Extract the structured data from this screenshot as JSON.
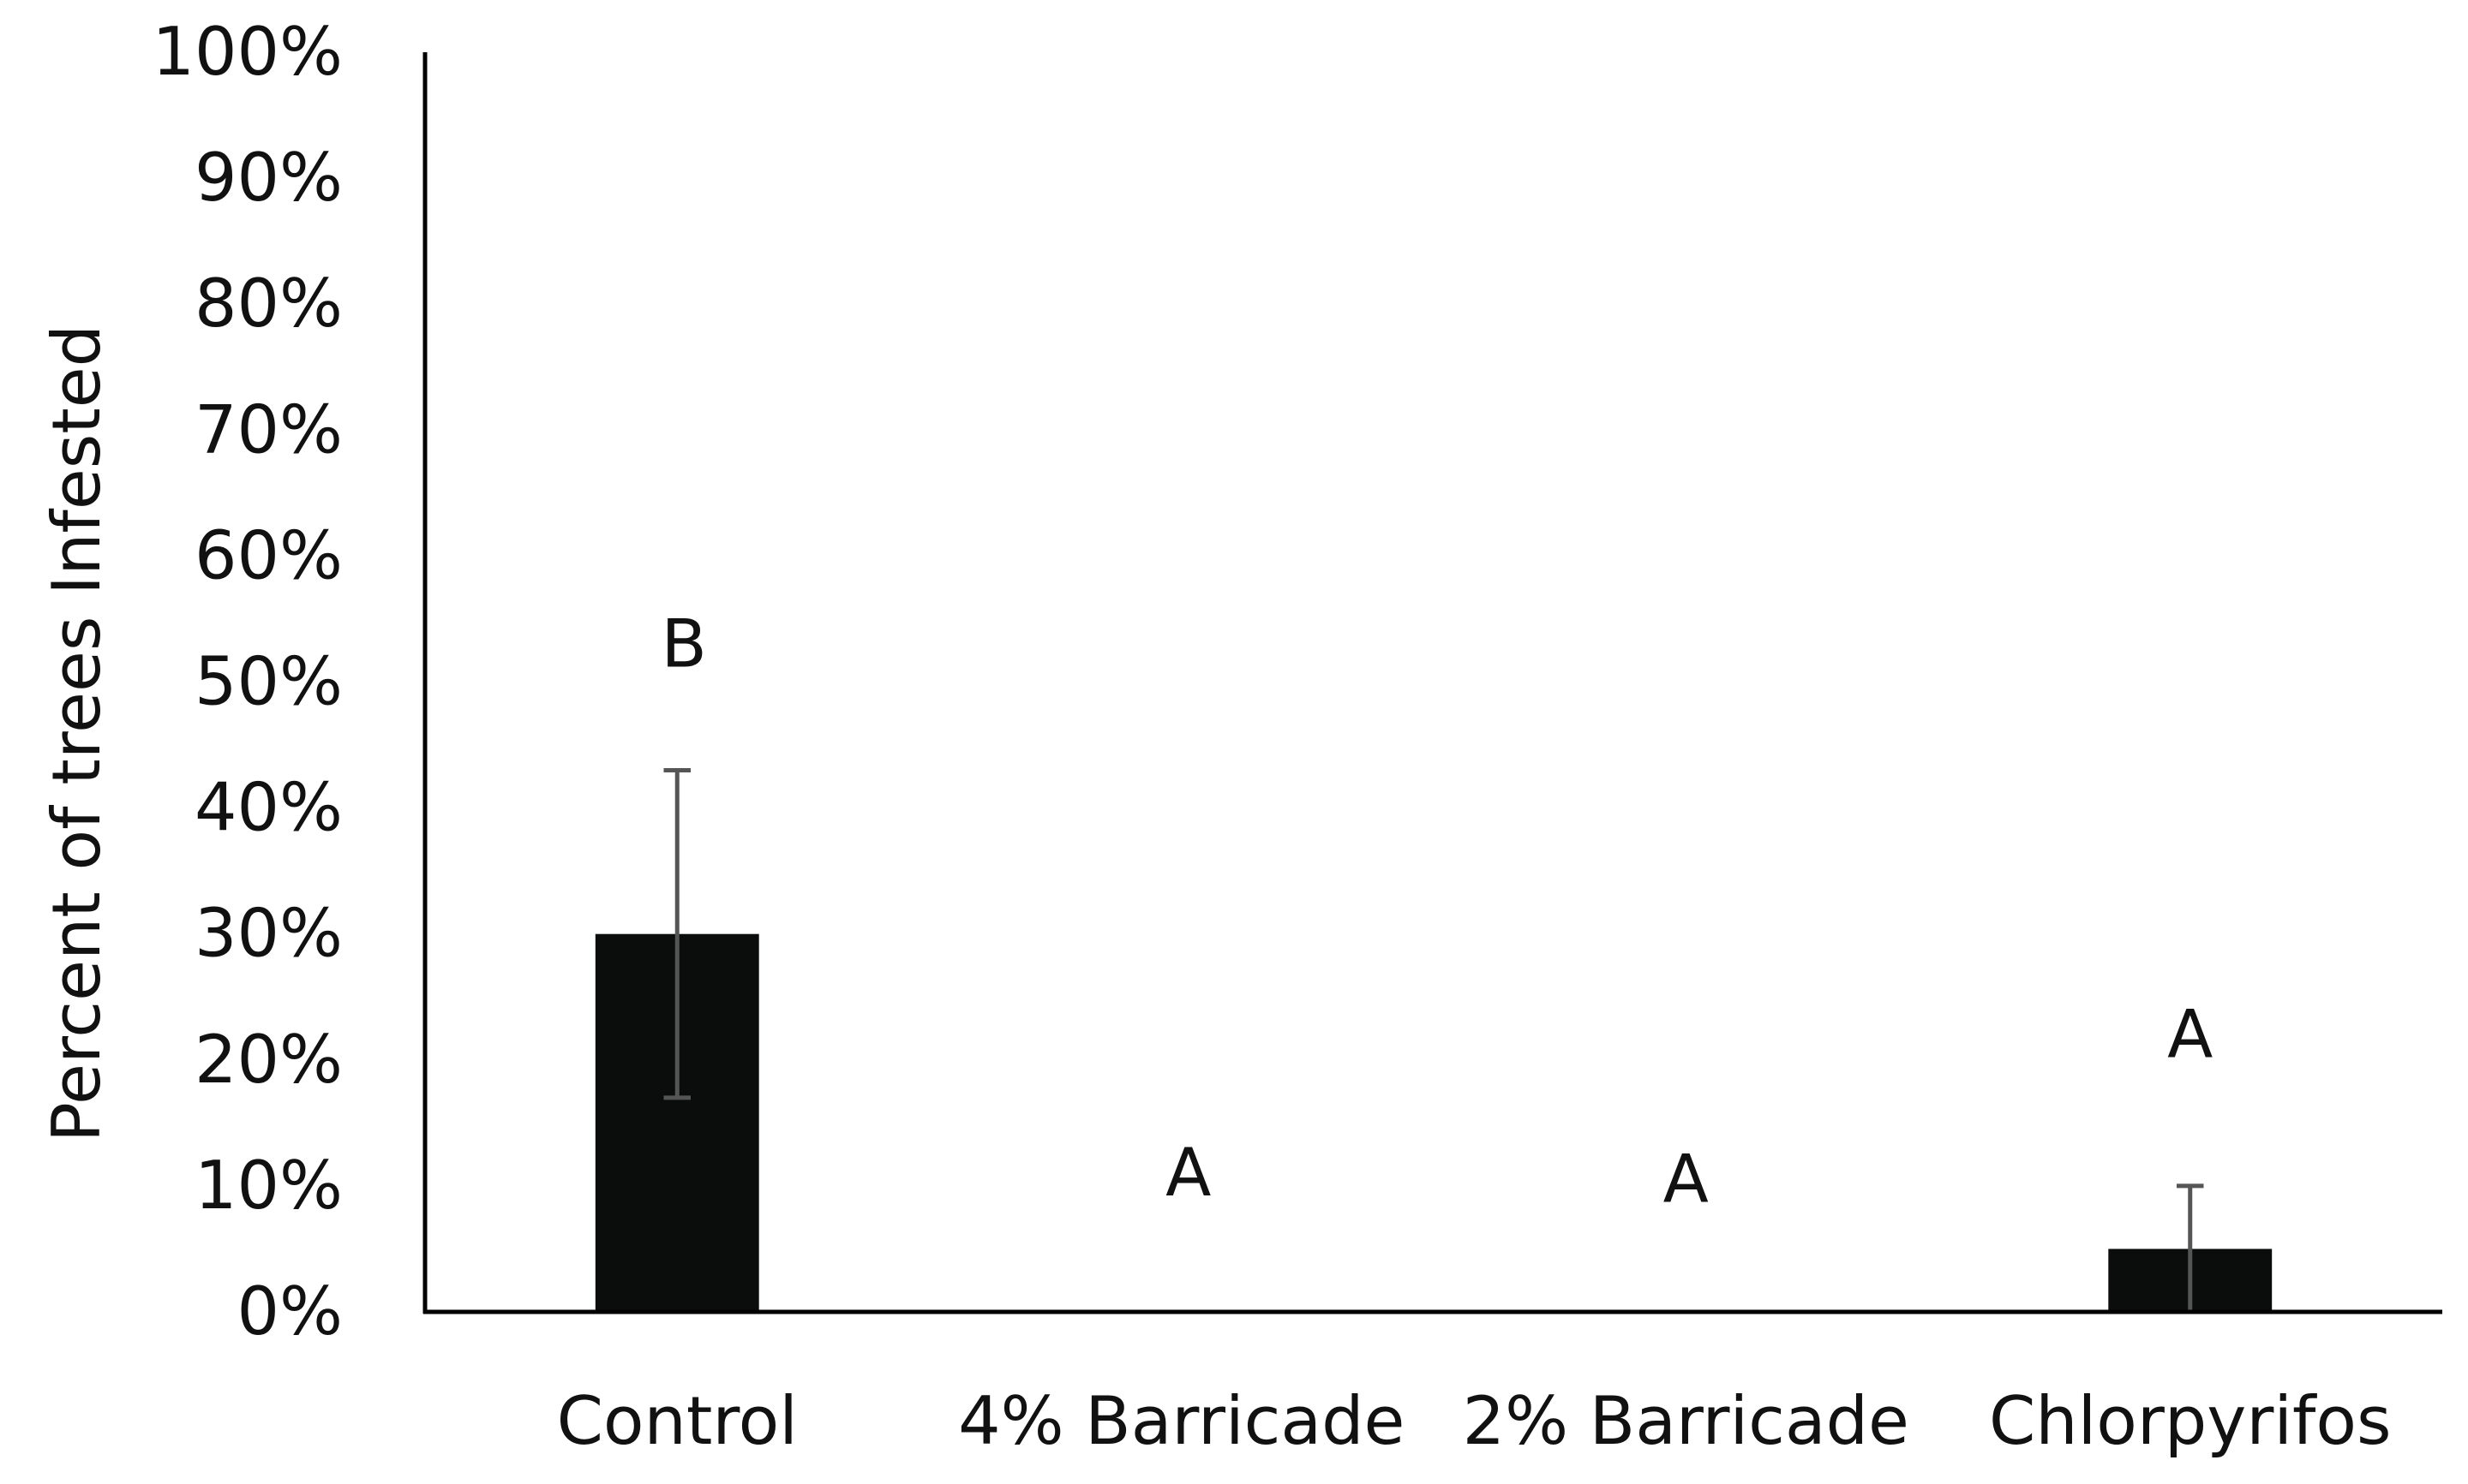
{
  "chart_data": {
    "type": "bar",
    "title": "",
    "xlabel": "",
    "ylabel": "Percent of trees Infested",
    "ylim": [
      0,
      100
    ],
    "yticks": [
      0,
      10,
      20,
      30,
      40,
      50,
      60,
      70,
      80,
      90,
      100
    ],
    "ytick_labels": [
      "0%",
      "10%",
      "20%",
      "30%",
      "40%",
      "50%",
      "60%",
      "70%",
      "80%",
      "90%",
      "100%"
    ],
    "categories": [
      "Control",
      "4% Barricade",
      "2% Barricade",
      "Chlorpyrifos"
    ],
    "values": [
      30,
      0,
      0,
      5
    ],
    "error_upper": [
      43,
      0,
      0,
      10
    ],
    "error_lower": [
      17,
      0,
      0,
      0
    ],
    "significance_letters": [
      "B",
      "A",
      "A",
      "A"
    ],
    "letter_heights": [
      53,
      11,
      10.5,
      22
    ],
    "grid": false,
    "legend": "none",
    "colors": {
      "bar": "#0a0d0c",
      "error_bar": "#555555",
      "axis": "#000000"
    }
  }
}
